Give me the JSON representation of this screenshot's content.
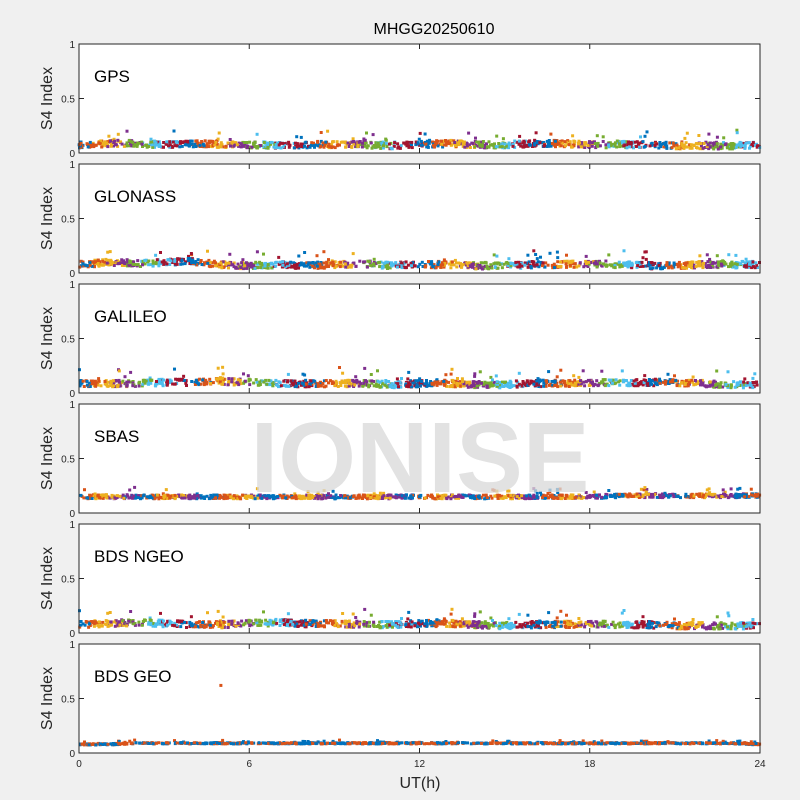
{
  "chart_data": {
    "type": "scatter",
    "title": "MHGG20250610",
    "xlabel": "UT(h)",
    "ylabel": "S4 Index",
    "xlim": [
      0,
      24
    ],
    "ylim": [
      0,
      1
    ],
    "xticks": [
      "0",
      "6",
      "12",
      "18",
      "24"
    ],
    "yticks": [
      "0",
      "0.5",
      "1"
    ],
    "watermark": "IONISE",
    "colors": [
      "#0072BD",
      "#D95319",
      "#EDB120",
      "#7E2F8E",
      "#77AC30",
      "#4DBEEE",
      "#A2142F"
    ],
    "panels": [
      {
        "name": "GPS",
        "typical_s4_hourly": [
          0.08,
          0.09,
          0.09,
          0.08,
          0.09,
          0.08,
          0.08,
          0.07,
          0.08,
          0.08,
          0.08,
          0.07,
          0.08,
          0.09,
          0.08,
          0.08,
          0.09,
          0.09,
          0.08,
          0.08,
          0.08,
          0.07,
          0.07,
          0.07,
          0.08
        ],
        "spread": 0.05,
        "colors_used": 7
      },
      {
        "name": "GLONASS",
        "typical_s4_hourly": [
          0.08,
          0.1,
          0.09,
          0.1,
          0.11,
          0.08,
          0.07,
          0.08,
          0.07,
          0.08,
          0.09,
          0.07,
          0.08,
          0.08,
          0.07,
          0.07,
          0.08,
          0.08,
          0.09,
          0.08,
          0.07,
          0.07,
          0.08,
          0.08,
          0.08
        ],
        "spread": 0.05,
        "colors_used": 7
      },
      {
        "name": "GALILEO",
        "typical_s4_hourly": [
          0.09,
          0.09,
          0.09,
          0.1,
          0.1,
          0.11,
          0.1,
          0.09,
          0.09,
          0.09,
          0.09,
          0.08,
          0.09,
          0.09,
          0.08,
          0.08,
          0.09,
          0.09,
          0.1,
          0.1,
          0.1,
          0.1,
          0.09,
          0.08,
          0.08
        ],
        "spread": 0.05,
        "colors_used": 7
      },
      {
        "name": "SBAS",
        "typical_s4_hourly": [
          0.15,
          0.15,
          0.15,
          0.15,
          0.15,
          0.15,
          0.15,
          0.15,
          0.15,
          0.15,
          0.15,
          0.15,
          0.15,
          0.15,
          0.15,
          0.15,
          0.15,
          0.15,
          0.15,
          0.16,
          0.16,
          0.16,
          0.16,
          0.16,
          0.16
        ],
        "spread": 0.03,
        "colors_used": 4
      },
      {
        "name": "BDS NGEO",
        "typical_s4_hourly": [
          0.08,
          0.09,
          0.1,
          0.09,
          0.08,
          0.08,
          0.09,
          0.1,
          0.09,
          0.09,
          0.08,
          0.08,
          0.09,
          0.09,
          0.08,
          0.07,
          0.08,
          0.08,
          0.09,
          0.08,
          0.08,
          0.07,
          0.07,
          0.07,
          0.07
        ],
        "spread": 0.05,
        "colors_used": 7
      },
      {
        "name": "BDS GEO",
        "typical_s4_hourly": [
          0.08,
          0.08,
          0.09,
          0.09,
          0.09,
          0.09,
          0.09,
          0.09,
          0.09,
          0.09,
          0.09,
          0.09,
          0.09,
          0.09,
          0.09,
          0.09,
          0.09,
          0.09,
          0.09,
          0.09,
          0.09,
          0.09,
          0.09,
          0.09,
          0.08
        ],
        "spread": 0.01,
        "colors_used": 2,
        "outlier": {
          "x": 5.0,
          "y": 0.62
        }
      }
    ]
  }
}
